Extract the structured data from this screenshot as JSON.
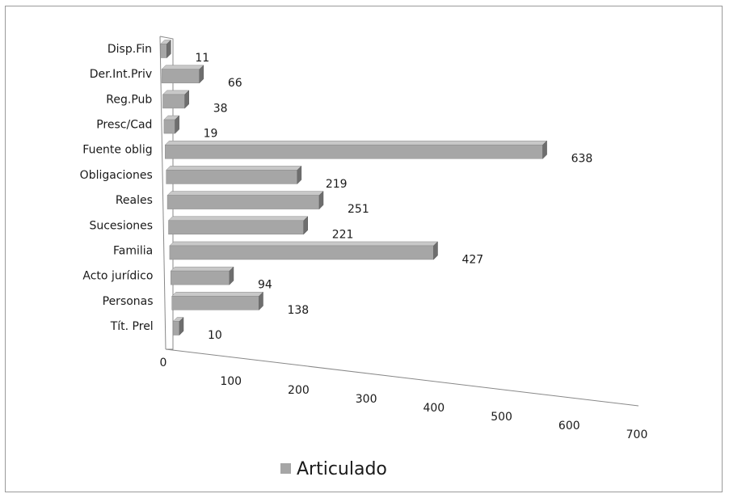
{
  "chart_data": {
    "type": "bar",
    "orientation": "horizontal",
    "style": "3d",
    "categories": [
      "Tít. Prel",
      "Personas",
      "Acto jurídico",
      "Familia",
      "Sucesiones",
      "Reales",
      "Obligaciones",
      "Fuente oblig",
      "Presc/Cad",
      "Reg.Pub",
      "Der.Int.Priv",
      "Disp.Fin"
    ],
    "series": [
      {
        "name": "Articulado",
        "values": [
          10,
          138,
          94,
          427,
          221,
          251,
          219,
          638,
          19,
          38,
          66,
          11
        ]
      }
    ],
    "xlim": [
      0,
      700
    ],
    "x_ticks": [
      "0",
      "100",
      "200",
      "300",
      "400",
      "500",
      "600",
      "700"
    ],
    "grid": false,
    "legend": "bottom",
    "colors": {
      "bar_front": "#a6a6a6",
      "bar_side": "#6e6e6e",
      "bar_top": "#c8c8c8"
    }
  }
}
